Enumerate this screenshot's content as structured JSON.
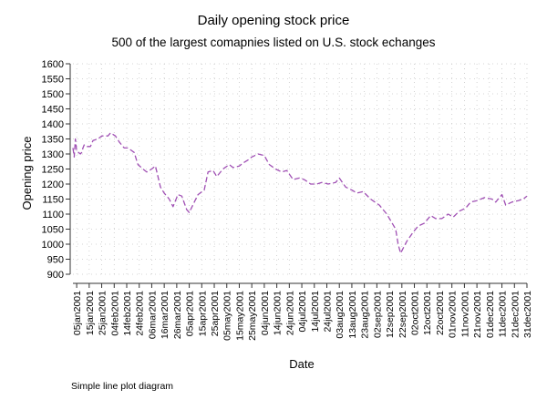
{
  "chart_data": {
    "type": "line",
    "title": "Daily opening stock price",
    "subtitle": "500 of the largest comapnies listed on U.S. stock echanges",
    "xlabel": "Date",
    "ylabel": "Opening price",
    "ylim": [
      900,
      1600
    ],
    "yticks": [
      900,
      950,
      1000,
      1050,
      1100,
      1150,
      1200,
      1250,
      1300,
      1350,
      1400,
      1450,
      1500,
      1550,
      1600
    ],
    "xlim": [
      "2001-01-02",
      "2001-12-31"
    ],
    "xtick_labels": [
      "05jan2001",
      "15jan2001",
      "25jan2001",
      "04feb2001",
      "14feb2001",
      "24feb2001",
      "06mar2001",
      "16mar2001",
      "26mar2001",
      "05apr2001",
      "15apr2001",
      "25apr2001",
      "05may2001",
      "15may2001",
      "25may2001",
      "04jun2001",
      "14jun2001",
      "24jun2001",
      "04jul2001",
      "14jul2001",
      "24jul2001",
      "03aug2001",
      "13aug2001",
      "23aug2001",
      "02sep2001",
      "12sep2001",
      "22sep2001",
      "02oct2001",
      "12oct2001",
      "22oct2001",
      "01nov2001",
      "11nov2001",
      "21nov2001",
      "01dec2001",
      "11dec2001",
      "21dec2001",
      "31dec2001"
    ],
    "grid": true,
    "line_style": "dashed",
    "line_color": "#a050b4",
    "series": [
      {
        "x": [
          "2001-01-02",
          "2001-01-03",
          "2001-01-04",
          "2001-01-05",
          "2001-01-08",
          "2001-01-09",
          "2001-01-10",
          "2001-01-11",
          "2001-01-12",
          "2001-01-16",
          "2001-01-18",
          "2001-01-22",
          "2001-01-25",
          "2001-01-30",
          "2001-02-01",
          "2001-02-05",
          "2001-02-08",
          "2001-02-12",
          "2001-02-15",
          "2001-02-20",
          "2001-02-23",
          "2001-02-27",
          "2001-03-02",
          "2001-03-06",
          "2001-03-09",
          "2001-03-13",
          "2001-03-16",
          "2001-03-20",
          "2001-03-23",
          "2001-03-27",
          "2001-03-30",
          "2001-04-03",
          "2001-04-05",
          "2001-04-09",
          "2001-04-12",
          "2001-04-17",
          "2001-04-20",
          "2001-04-24",
          "2001-04-27",
          "2001-05-02",
          "2001-05-07",
          "2001-05-10",
          "2001-05-15",
          "2001-05-18",
          "2001-05-22",
          "2001-05-25",
          "2001-05-30",
          "2001-06-04",
          "2001-06-08",
          "2001-06-13",
          "2001-06-18",
          "2001-06-22",
          "2001-06-27",
          "2001-07-02",
          "2001-07-06",
          "2001-07-11",
          "2001-07-16",
          "2001-07-20",
          "2001-07-25",
          "2001-07-31",
          "2001-08-03",
          "2001-08-08",
          "2001-08-13",
          "2001-08-17",
          "2001-08-22",
          "2001-08-28",
          "2001-09-04",
          "2001-09-10",
          "2001-09-17",
          "2001-09-19",
          "2001-09-21",
          "2001-09-26",
          "2001-10-01",
          "2001-10-05",
          "2001-10-10",
          "2001-10-15",
          "2001-10-19",
          "2001-10-24",
          "2001-10-29",
          "2001-11-02",
          "2001-11-07",
          "2001-11-12",
          "2001-11-16",
          "2001-11-21",
          "2001-11-27",
          "2001-12-03",
          "2001-12-06",
          "2001-12-11",
          "2001-12-14",
          "2001-12-19",
          "2001-12-24",
          "2001-12-28",
          "2001-12-31"
        ],
        "y": [
          1320,
          1290,
          1350,
          1310,
          1300,
          1305,
          1320,
          1330,
          1325,
          1325,
          1345,
          1350,
          1360,
          1360,
          1370,
          1360,
          1340,
          1320,
          1320,
          1305,
          1265,
          1250,
          1240,
          1250,
          1260,
          1190,
          1170,
          1150,
          1125,
          1165,
          1160,
          1115,
          1105,
          1140,
          1165,
          1180,
          1240,
          1245,
          1225,
          1250,
          1265,
          1255,
          1260,
          1270,
          1280,
          1290,
          1300,
          1295,
          1265,
          1250,
          1240,
          1245,
          1215,
          1220,
          1215,
          1200,
          1200,
          1205,
          1200,
          1205,
          1220,
          1190,
          1180,
          1170,
          1175,
          1150,
          1130,
          1100,
          1050,
          1000,
          970,
          1010,
          1040,
          1060,
          1070,
          1095,
          1085,
          1085,
          1100,
          1090,
          1110,
          1120,
          1140,
          1145,
          1155,
          1150,
          1140,
          1165,
          1130,
          1140,
          1145,
          1150,
          1160
        ]
      }
    ]
  },
  "note": "Simple line plot diagram"
}
